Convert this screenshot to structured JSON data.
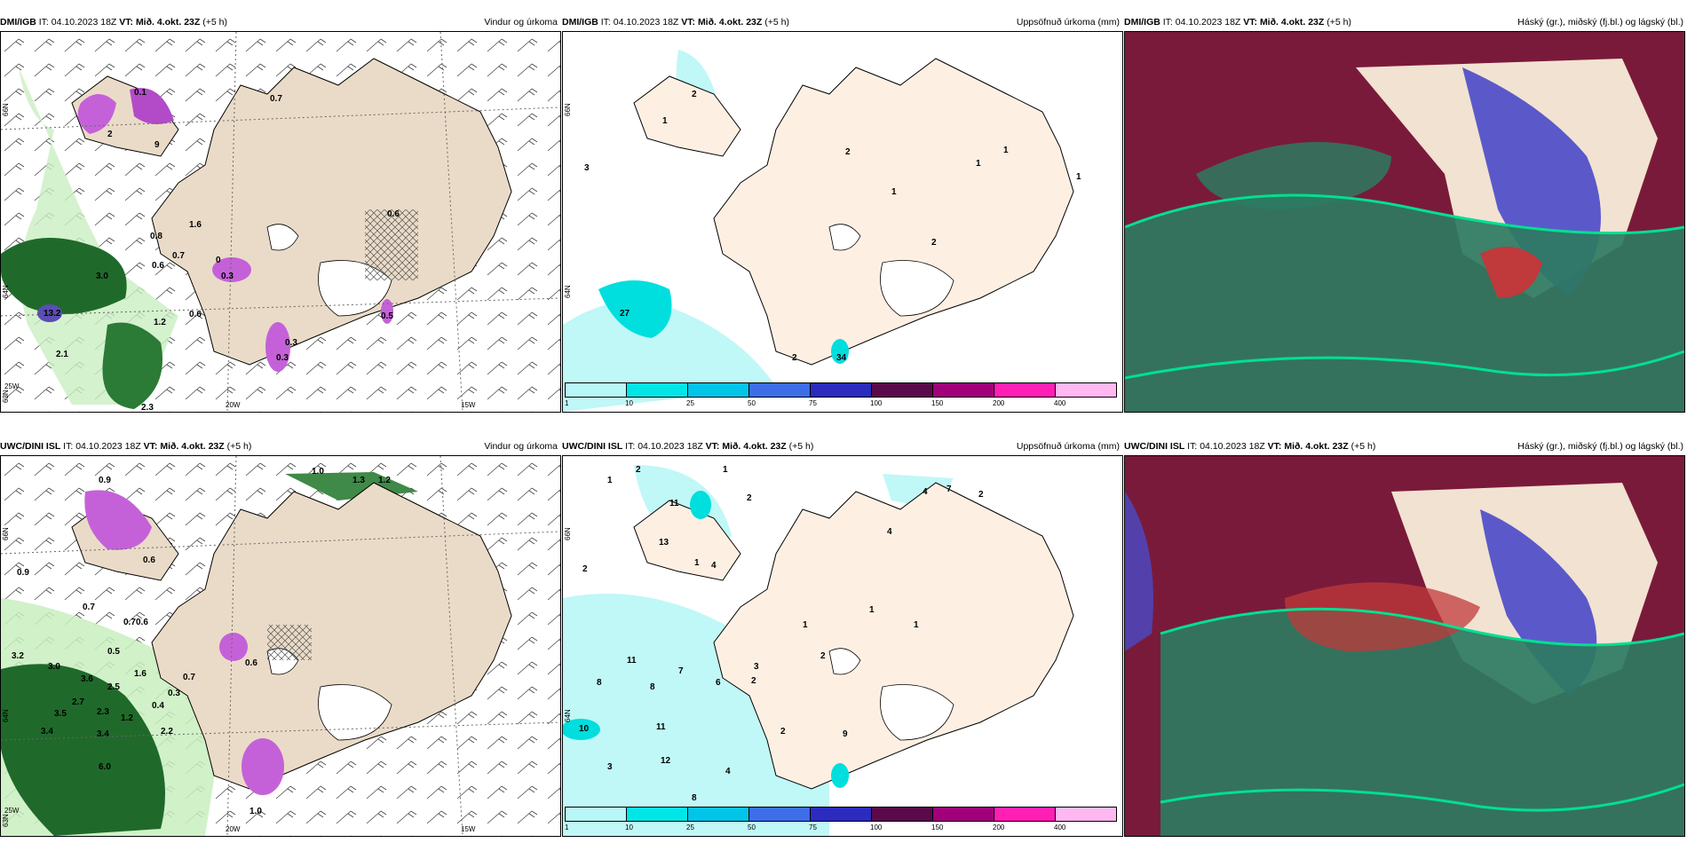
{
  "panels": [
    {
      "model": "DMI/IGB",
      "it_label": "IT:",
      "it_value": "04.10.2023 18Z",
      "vt_label": "VT:",
      "vt_value": "Mið. 4.okt. 23Z",
      "lead": "(+5 h)",
      "title": "Vindur og úrkoma",
      "lat_ticks": [
        "66N",
        "64N",
        "63N"
      ],
      "lon_ticks": [
        "25W",
        "20W",
        "15W"
      ],
      "values": [
        "0.1",
        "0.7",
        "2",
        "9",
        "1.6",
        "0.8",
        "0.7",
        "3.0",
        "0.6",
        "0.3",
        "0.6",
        "1.2",
        "13.2",
        "2.1",
        "2.3",
        "0.3",
        "0.6",
        "0",
        "0.5",
        "0.3"
      ],
      "icons": {
        "wind": "wind-barb-icon",
        "precip": "precipitation-field-icon",
        "hatch": "snow-hatching-icon"
      }
    },
    {
      "model": "DMI/IGB",
      "it_label": "IT:",
      "it_value": "04.10.2023 18Z",
      "vt_label": "VT:",
      "vt_value": "Mið. 4.okt. 23Z",
      "lead": "(+5 h)",
      "title": "Uppsöfnuð úrkoma (mm)",
      "lat_ticks": [
        "66N",
        "64N"
      ],
      "values": [
        "3",
        "1",
        "1",
        "2",
        "1",
        "1",
        "2",
        "1",
        "27",
        "2",
        "34",
        "2"
      ],
      "colorbar_ticks": [
        "1",
        "10",
        "25",
        "50",
        "75",
        "100",
        "150",
        "200",
        "400"
      ],
      "colorbar_colors": [
        "#b8f7f7",
        "#00e6e6",
        "#00c4e8",
        "#3d6ee8",
        "#2b2bbf",
        "#5a0a4a",
        "#a0007a",
        "#ff1fb4",
        "#ffb8f0"
      ]
    },
    {
      "model": "DMI/IGB",
      "it_label": "IT:",
      "it_value": "04.10.2023 18Z",
      "vt_label": "VT:",
      "vt_value": "Mið. 4.okt. 23Z",
      "lead": "(+5 h)",
      "title": "Háský (gr.), miðský (fj.bl.) og lágský (bl.)",
      "colors": {
        "high": "#7a1a3a",
        "mid": "#4a4ac8",
        "low": "#2e7a62",
        "edge": "#00e090",
        "land": "#f2e2d2"
      }
    },
    {
      "model": "UWC/DINI ISL",
      "it_label": "IT:",
      "it_value": "04.10.2023 18Z",
      "vt_label": "VT:",
      "vt_value": "Mið. 4.okt. 23Z",
      "lead": "(+5 h)",
      "title": "Vindur og úrkoma",
      "lat_ticks": [
        "66N",
        "64N",
        "63N"
      ],
      "lon_ticks": [
        "25W",
        "20W",
        "15W"
      ],
      "values": [
        "1.0",
        "1.3",
        "1.2",
        "0.9",
        "0.6",
        "0.9",
        "0.7",
        "0.7",
        "0.6",
        "0.5",
        "3.2",
        "3.0",
        "3.6",
        "2.5",
        "1.6",
        "2.7",
        "3.5",
        "2.3",
        "3.4",
        "3.4",
        "2.2",
        "6.0",
        "1.0",
        "0.3",
        "0.7",
        "0.6",
        "0.4",
        "1.2"
      ],
      "icons": {
        "wind": "wind-barb-icon",
        "precip": "precipitation-field-icon",
        "hatch": "snow-hatching-icon"
      }
    },
    {
      "model": "UWC/DINI ISL",
      "it_label": "IT:",
      "it_value": "04.10.2023 18Z",
      "vt_label": "VT:",
      "vt_value": "Mið. 4.okt. 23Z",
      "lead": "(+5 h)",
      "title": "Uppsöfnuð úrkoma (mm)",
      "lat_ticks": [
        "66N",
        "64N"
      ],
      "values": [
        "2",
        "1",
        "1",
        "2",
        "11",
        "13",
        "4",
        "7",
        "2",
        "4",
        "2",
        "1",
        "4",
        "11",
        "8",
        "8",
        "7",
        "6",
        "3",
        "2",
        "10",
        "11",
        "12",
        "3",
        "8",
        "4",
        "2",
        "9",
        "1",
        "1",
        "1",
        "2"
      ],
      "colorbar_ticks": [
        "1",
        "10",
        "25",
        "50",
        "75",
        "100",
        "150",
        "200",
        "400"
      ],
      "colorbar_colors": [
        "#b8f7f7",
        "#00e6e6",
        "#00c4e8",
        "#3d6ee8",
        "#2b2bbf",
        "#5a0a4a",
        "#a0007a",
        "#ff1fb4",
        "#ffb8f0"
      ]
    },
    {
      "model": "UWC/DINI ISL",
      "it_label": "IT:",
      "it_value": "04.10.2023 18Z",
      "vt_label": "VT:",
      "vt_value": "Mið. 4.okt. 23Z",
      "lead": "(+5 h)",
      "title": "Háský (gr.), miðský (fj.bl.) og lágský (bl.)",
      "colors": {
        "high": "#7a1a3a",
        "mid": "#4a4ac8",
        "low": "#2e7a62",
        "edge": "#00e090",
        "land": "#f2e2d2"
      }
    }
  ]
}
